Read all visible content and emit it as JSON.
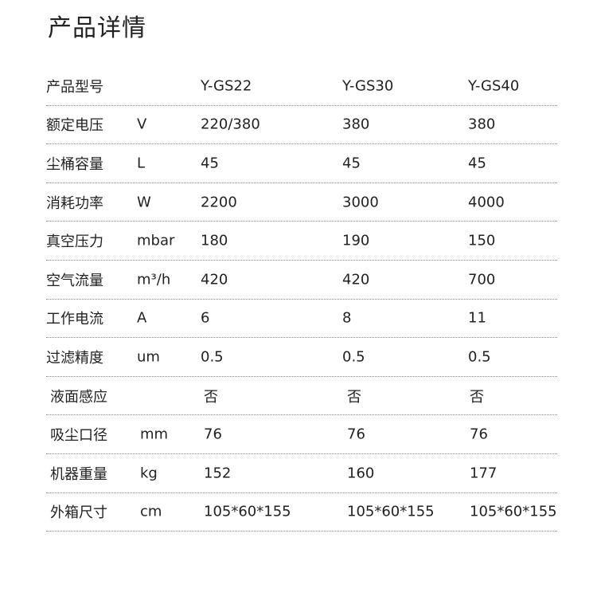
{
  "title": "产品详情",
  "header": {
    "label": "产品型号",
    "unit": "",
    "models": [
      "Y-GS22",
      "Y-GS30",
      "Y-GS40"
    ]
  },
  "rows": [
    {
      "label": "额定电压",
      "unit": "V",
      "values": [
        "220/380",
        "380",
        "380"
      ]
    },
    {
      "label": "尘桶容量",
      "unit": "L",
      "values": [
        "45",
        "45",
        "45"
      ]
    },
    {
      "label": "消耗功率",
      "unit": "W",
      "values": [
        "2200",
        "3000",
        "4000"
      ]
    },
    {
      "label": "真空压力",
      "unit": "mbar",
      "values": [
        "180",
        "190",
        "150"
      ]
    },
    {
      "label": "空气流量",
      "unit": "m³/h",
      "values": [
        "420",
        "420",
        "700"
      ]
    },
    {
      "label": "工作电流",
      "unit": "A",
      "values": [
        "6",
        "8",
        "11"
      ]
    },
    {
      "label": "过滤精度",
      "unit": "um",
      "values": [
        "0.5",
        "0.5",
        "0.5"
      ]
    },
    {
      "label": "液面感应",
      "unit": "",
      "values": [
        "否",
        "否",
        "否"
      ]
    },
    {
      "label": "吸尘口径",
      "unit": "mm",
      "values": [
        "76",
        "76",
        "76"
      ]
    },
    {
      "label": "机器重量",
      "unit": "kg",
      "values": [
        "152",
        "160",
        "177"
      ]
    },
    {
      "label": "外箱尺寸",
      "unit": "cm",
      "values": [
        "105*60*155",
        "105*60*155",
        "105*60*155"
      ]
    }
  ]
}
